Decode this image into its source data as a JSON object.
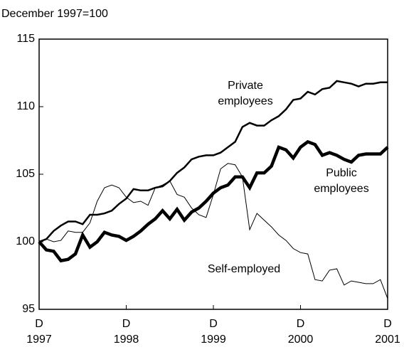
{
  "chart_data": {
    "type": "line",
    "y_label": "December 1997=100",
    "categories": [
      "D\n1997",
      null,
      null,
      null,
      null,
      null,
      null,
      null,
      null,
      null,
      null,
      null,
      "D\n1998",
      null,
      null,
      null,
      null,
      null,
      null,
      null,
      null,
      null,
      null,
      null,
      "D\n1999",
      null,
      null,
      null,
      null,
      null,
      null,
      null,
      null,
      null,
      null,
      null,
      "D\n2000",
      null,
      null,
      null,
      null,
      null,
      null,
      null,
      null,
      null,
      null,
      null,
      "D\n2001"
    ],
    "ylim": [
      95,
      115
    ],
    "yticks": [
      95,
      100,
      105,
      110,
      115
    ],
    "grid": false,
    "series": [
      {
        "name": "Private\nemployees",
        "color": "#000000",
        "values": [
          100,
          100.2,
          100.8,
          101.2,
          101.5,
          101.5,
          101.3,
          102,
          102,
          102.1,
          102.3,
          102.8,
          103.2,
          103.9,
          103.8,
          103.8,
          104,
          104.1,
          104.5,
          105.1,
          105.5,
          106.1,
          106.3,
          106.4,
          106.4,
          106.6,
          107,
          107.4,
          108.5,
          108.8,
          108.6,
          108.6,
          109,
          109.3,
          109.8,
          110.5,
          110.6,
          111.1,
          110.9,
          111.3,
          111.4,
          111.9,
          111.8,
          111.7,
          111.5,
          111.7,
          111.7,
          111.8,
          111.8
        ]
      },
      {
        "name": "Public\nemployees",
        "color": "#000000",
        "values": [
          100,
          99.4,
          99.3,
          98.6,
          98.7,
          99.1,
          100.5,
          99.6,
          100,
          100.7,
          100.5,
          100.4,
          100.1,
          100.4,
          100.8,
          101.3,
          101.7,
          102.3,
          101.7,
          102.4,
          101.6,
          102.2,
          102.5,
          103,
          103.6,
          104,
          104.2,
          104.8,
          104.8,
          104,
          105.1,
          105.1,
          105.6,
          107,
          106.8,
          106.2,
          107,
          107.4,
          107.2,
          106.4,
          106.6,
          106.4,
          106.1,
          105.9,
          106.4,
          106.5,
          106.5,
          106.5,
          107
        ]
      },
      {
        "name": "Self-employed",
        "color": "#000000",
        "values": [
          100,
          100.2,
          100,
          100.1,
          100.8,
          100.7,
          100.7,
          101.4,
          103,
          104,
          104.2,
          104,
          103.3,
          102.9,
          103,
          102.7,
          104,
          104.2,
          104.5,
          103.5,
          103.3,
          102.5,
          102,
          101.8,
          103.5,
          105.4,
          105.8,
          105.7,
          104.8,
          100.9,
          102.1,
          101.6,
          101.1,
          100.5,
          100.1,
          99.5,
          99.2,
          99.1,
          97.2,
          97.1,
          97.9,
          98,
          96.8,
          97.1,
          97,
          96.9,
          96.9,
          97.2,
          95.8
        ]
      }
    ]
  }
}
